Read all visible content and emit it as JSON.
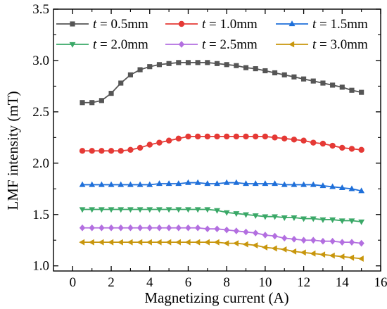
{
  "chart_data": {
    "type": "line",
    "title": "",
    "xlabel": "Magnetizing current (A)",
    "ylabel": "LMF intensity (mT)",
    "xlim": [
      -1,
      16
    ],
    "ylim": [
      0.95,
      3.5
    ],
    "xticks": [
      0,
      2,
      4,
      6,
      8,
      10,
      12,
      14,
      16
    ],
    "xtick_labels": [
      "0",
      "2",
      "4",
      "6",
      "8",
      "10",
      "12",
      "14",
      "16"
    ],
    "yticks": [
      1.0,
      1.5,
      2.0,
      2.5,
      3.0,
      3.5
    ],
    "ytick_labels": [
      "1.0",
      "1.5",
      "2.0",
      "2.5",
      "3.0",
      "3.5"
    ],
    "grid": false,
    "legend_position": "top",
    "x": [
      0.5,
      1.0,
      1.5,
      2.0,
      2.5,
      3.0,
      3.5,
      4.0,
      4.5,
      5.0,
      5.5,
      6.0,
      6.5,
      7.0,
      7.5,
      8.0,
      8.5,
      9.0,
      9.5,
      10.0,
      10.5,
      11.0,
      11.5,
      12.0,
      12.5,
      13.0,
      13.5,
      14.0,
      14.5,
      15.0
    ],
    "series": [
      {
        "name_var": "t",
        "name_rest": " = 0.5mm",
        "color": "#555555",
        "marker": "square",
        "values": [
          2.59,
          2.59,
          2.61,
          2.68,
          2.78,
          2.86,
          2.91,
          2.94,
          2.96,
          2.97,
          2.98,
          2.98,
          2.98,
          2.98,
          2.97,
          2.96,
          2.95,
          2.93,
          2.92,
          2.9,
          2.88,
          2.86,
          2.84,
          2.82,
          2.8,
          2.78,
          2.76,
          2.74,
          2.71,
          2.69
        ]
      },
      {
        "name_var": "t",
        "name_rest": " = 1.0mm",
        "color": "#e53935",
        "marker": "circle",
        "values": [
          2.12,
          2.12,
          2.12,
          2.12,
          2.12,
          2.13,
          2.15,
          2.18,
          2.2,
          2.22,
          2.24,
          2.26,
          2.26,
          2.26,
          2.26,
          2.26,
          2.26,
          2.26,
          2.26,
          2.26,
          2.25,
          2.24,
          2.23,
          2.22,
          2.2,
          2.19,
          2.17,
          2.15,
          2.14,
          2.13
        ]
      },
      {
        "name_var": "t",
        "name_rest": " = 1.5mm",
        "color": "#1e6fd9",
        "marker": "triangle-up",
        "values": [
          1.79,
          1.79,
          1.79,
          1.79,
          1.79,
          1.79,
          1.79,
          1.79,
          1.8,
          1.8,
          1.8,
          1.81,
          1.81,
          1.8,
          1.8,
          1.81,
          1.81,
          1.8,
          1.8,
          1.8,
          1.8,
          1.79,
          1.79,
          1.79,
          1.79,
          1.78,
          1.77,
          1.76,
          1.75,
          1.73
        ]
      },
      {
        "name_var": "t",
        "name_rest": " = 2.0mm",
        "color": "#3aa867",
        "marker": "triangle-down",
        "values": [
          1.55,
          1.55,
          1.55,
          1.55,
          1.55,
          1.55,
          1.55,
          1.55,
          1.55,
          1.55,
          1.55,
          1.55,
          1.55,
          1.55,
          1.54,
          1.52,
          1.51,
          1.5,
          1.49,
          1.48,
          1.48,
          1.47,
          1.47,
          1.46,
          1.46,
          1.45,
          1.45,
          1.44,
          1.44,
          1.43
        ]
      },
      {
        "name_var": "t",
        "name_rest": " = 2.5mm",
        "color": "#b36fe0",
        "marker": "diamond",
        "values": [
          1.37,
          1.37,
          1.37,
          1.37,
          1.37,
          1.37,
          1.37,
          1.37,
          1.37,
          1.37,
          1.37,
          1.37,
          1.37,
          1.36,
          1.36,
          1.35,
          1.34,
          1.33,
          1.32,
          1.3,
          1.29,
          1.27,
          1.26,
          1.25,
          1.25,
          1.24,
          1.24,
          1.23,
          1.23,
          1.22
        ]
      },
      {
        "name_var": "t",
        "name_rest": " = 3.0mm",
        "color": "#c8960c",
        "marker": "triangle-left",
        "values": [
          1.23,
          1.23,
          1.23,
          1.23,
          1.23,
          1.23,
          1.23,
          1.23,
          1.23,
          1.23,
          1.23,
          1.23,
          1.23,
          1.23,
          1.23,
          1.22,
          1.22,
          1.21,
          1.2,
          1.18,
          1.17,
          1.16,
          1.14,
          1.13,
          1.12,
          1.11,
          1.1,
          1.09,
          1.08,
          1.07
        ]
      }
    ]
  }
}
